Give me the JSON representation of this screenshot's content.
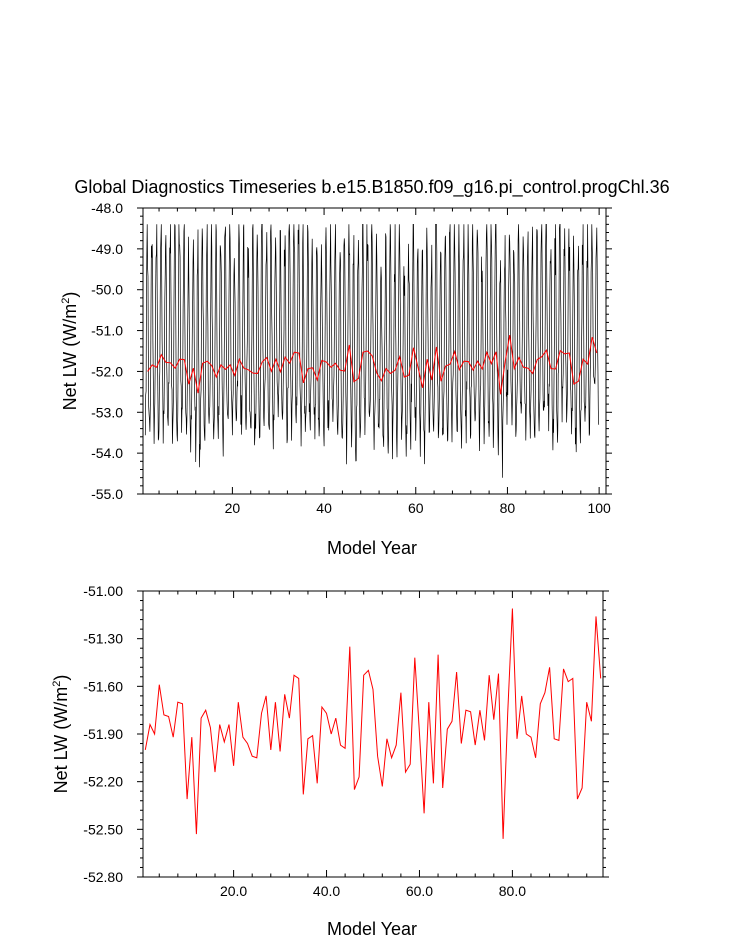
{
  "colors": {
    "monthly": "#000000",
    "annual": "#ff0000",
    "frame": "#000000",
    "background": "#ffffff"
  },
  "chart_data": [
    {
      "type": "line",
      "title": "Global Diagnostics Timeseries b.e15.B1850.f09_g16.pi_control.progChl.36",
      "xlabel": "Model Year",
      "ylabel_main": "Net LW (W/m",
      "ylabel_sup": "2",
      "ylabel_tail": ")",
      "xlim": [
        0.5,
        101.5
      ],
      "ylim": [
        -55.0,
        -48.0
      ],
      "xticks": [
        20,
        40,
        60,
        80,
        100
      ],
      "xtick_labels": [
        "20",
        "40",
        "60",
        "80",
        "100"
      ],
      "yticks": [
        -55.0,
        -54.0,
        -53.0,
        -52.0,
        -51.0,
        -50.0,
        -49.0,
        -48.0
      ],
      "ytick_labels": [
        "-55.0",
        "-54.0",
        "-53.0",
        "-52.0",
        "-51.0",
        "-50.0",
        "-49.0",
        "-48.0"
      ],
      "series": [
        {
          "name": "monthly",
          "color": "#000000",
          "x_start": 1.0,
          "x_step": 0.08333,
          "seed": 36
        },
        {
          "name": "annual",
          "color": "#ff0000",
          "source": "annual_mean"
        }
      ]
    },
    {
      "type": "line",
      "title": "",
      "xlabel": "Model Year",
      "ylabel_main": "Net LW (W/m",
      "ylabel_sup": "2",
      "ylabel_tail": ")",
      "xlim": [
        0.5,
        99.5
      ],
      "ylim": [
        -52.8,
        -51.0
      ],
      "xticks": [
        20,
        40,
        60,
        80
      ],
      "xtick_labels": [
        "20.0",
        "40.0",
        "60.0",
        "80.0"
      ],
      "yticks": [
        -52.8,
        -52.5,
        -52.2,
        -51.9,
        -51.6,
        -51.3,
        -51.0
      ],
      "ytick_labels": [
        "-52.80",
        "-52.50",
        "-52.20",
        "-51.90",
        "-51.60",
        "-51.30",
        "-51.00"
      ],
      "series": [
        {
          "name": "annual_mean",
          "color": "#ff0000",
          "x_start": 1,
          "values": [
            -52.0,
            -51.84,
            -51.9,
            -51.59,
            -51.78,
            -51.79,
            -51.92,
            -51.7,
            -51.71,
            -52.31,
            -51.92,
            -52.53,
            -51.8,
            -51.75,
            -51.86,
            -52.14,
            -51.84,
            -51.95,
            -51.84,
            -52.1,
            -51.7,
            -51.92,
            -51.96,
            -52.04,
            -52.05,
            -51.77,
            -51.66,
            -52.0,
            -51.7,
            -52.01,
            -51.65,
            -51.8,
            -51.53,
            -51.55,
            -52.28,
            -51.93,
            -51.91,
            -52.21,
            -51.73,
            -51.77,
            -51.9,
            -51.8,
            -51.97,
            -51.99,
            -51.35,
            -52.25,
            -52.17,
            -51.53,
            -51.5,
            -51.62,
            -52.04,
            -52.23,
            -51.93,
            -52.05,
            -51.97,
            -51.64,
            -52.14,
            -52.09,
            -51.42,
            -51.9,
            -52.4,
            -51.7,
            -52.21,
            -51.4,
            -52.24,
            -51.87,
            -51.82,
            -51.51,
            -51.96,
            -51.75,
            -51.76,
            -51.97,
            -51.75,
            -51.94,
            -51.53,
            -51.81,
            -51.52,
            -52.56,
            -51.77,
            -51.11,
            -51.93,
            -51.66,
            -51.9,
            -51.92,
            -52.05,
            -51.71,
            -51.64,
            -51.48,
            -51.93,
            -51.94,
            -51.49,
            -51.57,
            -51.55,
            -52.31,
            -52.24,
            -51.7,
            -51.82,
            -51.16,
            -51.55
          ]
        }
      ]
    }
  ]
}
